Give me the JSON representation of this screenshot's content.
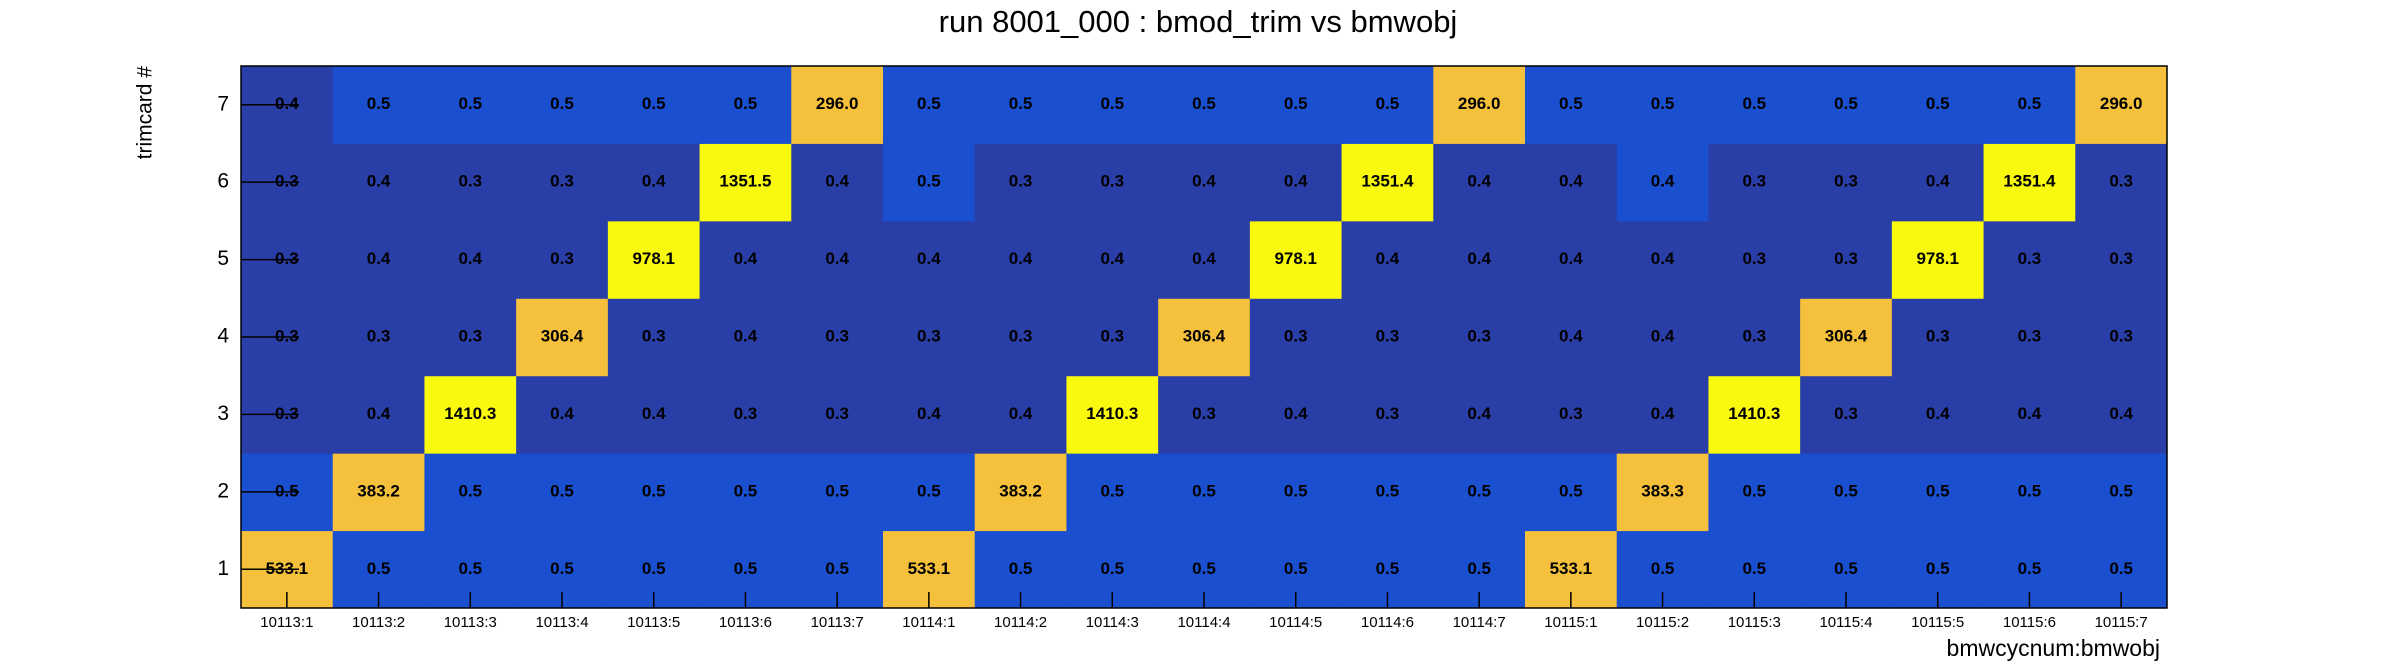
{
  "chart_data": {
    "type": "heatmap",
    "title": "run 8001_000 : bmod_trim vs bmwobj",
    "x_label": "bmwcycnum:bmwobj",
    "y_label": "trimcard #",
    "categories": [
      "10113:1",
      "10113:2",
      "10113:3",
      "10113:4",
      "10113:5",
      "10113:6",
      "10113:7",
      "10114:1",
      "10114:2",
      "10114:3",
      "10114:4",
      "10114:5",
      "10114:6",
      "10114:7",
      "10115:1",
      "10115:2",
      "10115:3",
      "10115:4",
      "10115:5",
      "10115:6",
      "10115:7"
    ],
    "y_categories": [
      1,
      2,
      3,
      4,
      5,
      6,
      7
    ],
    "values": [
      [
        533.1,
        0.5,
        0.5,
        0.5,
        0.5,
        0.5,
        0.5,
        533.1,
        0.5,
        0.5,
        0.5,
        0.5,
        0.5,
        0.5,
        533.1,
        0.5,
        0.5,
        0.5,
        0.5,
        0.5,
        0.5
      ],
      [
        0.5,
        383.2,
        0.5,
        0.5,
        0.5,
        0.5,
        0.5,
        0.5,
        383.2,
        0.5,
        0.5,
        0.5,
        0.5,
        0.5,
        0.5,
        383.3,
        0.5,
        0.5,
        0.5,
        0.5,
        0.5
      ],
      [
        0.3,
        0.4,
        1410.3,
        0.4,
        0.4,
        0.3,
        0.3,
        0.4,
        0.4,
        1410.3,
        0.3,
        0.4,
        0.3,
        0.4,
        0.3,
        0.4,
        1410.3,
        0.3,
        0.4,
        0.4,
        0.4
      ],
      [
        0.3,
        0.3,
        0.3,
        306.4,
        0.3,
        0.4,
        0.3,
        0.3,
        0.3,
        0.3,
        306.4,
        0.3,
        0.3,
        0.3,
        0.4,
        0.4,
        0.3,
        306.4,
        0.3,
        0.3,
        0.3
      ],
      [
        0.3,
        0.4,
        0.4,
        0.3,
        978.1,
        0.4,
        0.4,
        0.4,
        0.4,
        0.4,
        0.4,
        978.1,
        0.4,
        0.4,
        0.4,
        0.4,
        0.3,
        0.3,
        978.1,
        0.3,
        0.3
      ],
      [
        0.3,
        0.4,
        0.3,
        0.3,
        0.4,
        1351.5,
        0.4,
        0.5,
        0.3,
        0.3,
        0.4,
        0.4,
        1351.4,
        0.4,
        0.4,
        0.4,
        0.3,
        0.3,
        0.4,
        1351.4,
        0.3
      ],
      [
        0.4,
        0.5,
        0.5,
        0.5,
        0.5,
        0.5,
        296,
        0.5,
        0.5,
        0.5,
        0.5,
        0.5,
        0.5,
        296,
        0.5,
        0.5,
        0.5,
        0.5,
        0.5,
        0.5,
        296
      ]
    ],
    "value_labels": [
      [
        "533.1",
        "0.5",
        "0.5",
        "0.5",
        "0.5",
        "0.5",
        "0.5",
        "533.1",
        "0.5",
        "0.5",
        "0.5",
        "0.5",
        "0.5",
        "0.5",
        "533.1",
        "0.5",
        "0.5",
        "0.5",
        "0.5",
        "0.5",
        "0.5"
      ],
      [
        "0.5",
        "383.2",
        "0.5",
        "0.5",
        "0.5",
        "0.5",
        "0.5",
        "0.5",
        "383.2",
        "0.5",
        "0.5",
        "0.5",
        "0.5",
        "0.5",
        "0.5",
        "383.3",
        "0.5",
        "0.5",
        "0.5",
        "0.5",
        "0.5"
      ],
      [
        "0.3",
        "0.4",
        "1410.3",
        "0.4",
        "0.4",
        "0.3",
        "0.3",
        "0.4",
        "0.4",
        "1410.3",
        "0.3",
        "0.4",
        "0.3",
        "0.4",
        "0.3",
        "0.4",
        "1410.3",
        "0.3",
        "0.4",
        "0.4",
        "0.4"
      ],
      [
        "0.3",
        "0.3",
        "0.3",
        "306.4",
        "0.3",
        "0.4",
        "0.3",
        "0.3",
        "0.3",
        "0.3",
        "306.4",
        "0.3",
        "0.3",
        "0.3",
        "0.4",
        "0.4",
        "0.3",
        "306.4",
        "0.3",
        "0.3",
        "0.3"
      ],
      [
        "0.3",
        "0.4",
        "0.4",
        "0.3",
        "978.1",
        "0.4",
        "0.4",
        "0.4",
        "0.4",
        "0.4",
        "0.4",
        "978.1",
        "0.4",
        "0.4",
        "0.4",
        "0.4",
        "0.3",
        "0.3",
        "978.1",
        "0.3",
        "0.3"
      ],
      [
        "0.3",
        "0.4",
        "0.3",
        "0.3",
        "0.4",
        "1351.5",
        "0.4",
        "0.5",
        "0.3",
        "0.3",
        "0.4",
        "0.4",
        "1351.4",
        "0.4",
        "0.4",
        "0.4",
        "0.3",
        "0.3",
        "0.4",
        "1351.4",
        "0.3"
      ],
      [
        "0.4",
        "0.5",
        "0.5",
        "0.5",
        "0.5",
        "0.5",
        "296.0",
        "0.5",
        "0.5",
        "0.5",
        "0.5",
        "0.5",
        "0.5",
        "296.0",
        "0.5",
        "0.5",
        "0.5",
        "0.5",
        "0.5",
        "0.5",
        "296.0"
      ]
    ],
    "colors": [
      [
        "#f5c13c",
        "#1a4fcf",
        "#1a4fcf",
        "#1a4fcf",
        "#1a4fcf",
        "#1a4fcf",
        "#1a4fcf",
        "#f5c13c",
        "#1a4fcf",
        "#1a4fcf",
        "#1a4fcf",
        "#1a4fcf",
        "#1a4fcf",
        "#1a4fcf",
        "#f5c13c",
        "#1a4fcf",
        "#1a4fcf",
        "#1a4fcf",
        "#1a4fcf",
        "#1a4fcf",
        "#1a4fcf"
      ],
      [
        "#1a4fcf",
        "#f5c13c",
        "#1a4fcf",
        "#1a4fcf",
        "#1a4fcf",
        "#1a4fcf",
        "#1a4fcf",
        "#1a4fcf",
        "#f5c13c",
        "#1a4fcf",
        "#1a4fcf",
        "#1a4fcf",
        "#1a4fcf",
        "#1a4fcf",
        "#1a4fcf",
        "#f5c13c",
        "#1a4fcf",
        "#1a4fcf",
        "#1a4fcf",
        "#1a4fcf",
        "#1a4fcf"
      ],
      [
        "#2a3ea8",
        "#2a3ea8",
        "#f9f90f",
        "#2a3ea8",
        "#2a3ea8",
        "#2a3ea8",
        "#2a3ea8",
        "#2a3ea8",
        "#2a3ea8",
        "#f9f90f",
        "#2a3ea8",
        "#2a3ea8",
        "#2a3ea8",
        "#2a3ea8",
        "#2a3ea8",
        "#2a3ea8",
        "#f9f90f",
        "#2a3ea8",
        "#2a3ea8",
        "#2a3ea8",
        "#2a3ea8"
      ],
      [
        "#2a3ea8",
        "#2a3ea8",
        "#2a3ea8",
        "#f5c13c",
        "#2a3ea8",
        "#2a3ea8",
        "#2a3ea8",
        "#2a3ea8",
        "#2a3ea8",
        "#2a3ea8",
        "#f5c13c",
        "#2a3ea8",
        "#2a3ea8",
        "#2a3ea8",
        "#2a3ea8",
        "#2a3ea8",
        "#2a3ea8",
        "#f5c13c",
        "#2a3ea8",
        "#2a3ea8",
        "#2a3ea8"
      ],
      [
        "#2a3ea8",
        "#2a3ea8",
        "#2a3ea8",
        "#2a3ea8",
        "#f9f90f",
        "#2a3ea8",
        "#2a3ea8",
        "#2a3ea8",
        "#2a3ea8",
        "#2a3ea8",
        "#2a3ea8",
        "#f9f90f",
        "#2a3ea8",
        "#2a3ea8",
        "#2a3ea8",
        "#2a3ea8",
        "#2a3ea8",
        "#2a3ea8",
        "#f9f90f",
        "#2a3ea8",
        "#2a3ea8"
      ],
      [
        "#2a3ea8",
        "#2a3ea8",
        "#2a3ea8",
        "#2a3ea8",
        "#2a3ea8",
        "#f9f90f",
        "#2a3ea8",
        "#1a4fcf",
        "#2a3ea8",
        "#2a3ea8",
        "#2a3ea8",
        "#2a3ea8",
        "#f9f90f",
        "#2a3ea8",
        "#2a3ea8",
        "#1a4fcf",
        "#2a3ea8",
        "#2a3ea8",
        "#2a3ea8",
        "#f9f90f",
        "#2a3ea8"
      ],
      [
        "#2a3ea8",
        "#1a4fcf",
        "#1a4fcf",
        "#1a4fcf",
        "#1a4fcf",
        "#1a4fcf",
        "#f5c13c",
        "#1a4fcf",
        "#1a4fcf",
        "#1a4fcf",
        "#1a4fcf",
        "#1a4fcf",
        "#1a4fcf",
        "#f5c13c",
        "#1a4fcf",
        "#1a4fcf",
        "#1a4fcf",
        "#1a4fcf",
        "#1a4fcf",
        "#1a4fcf",
        "#f5c13c"
      ]
    ]
  }
}
